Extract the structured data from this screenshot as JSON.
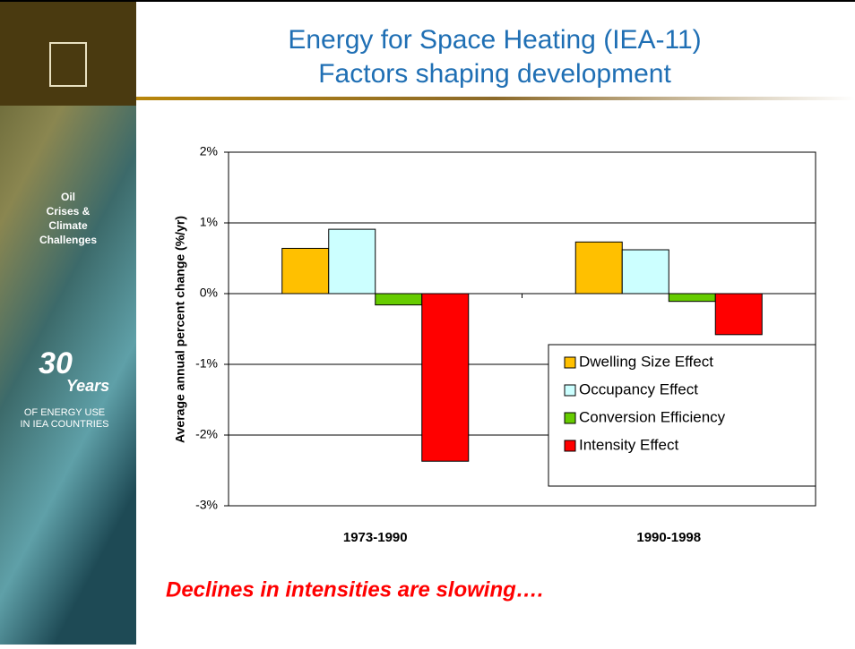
{
  "slide": {
    "title_lines": [
      "Energy for Space Heating (IEA-11)",
      "Factors shaping development"
    ],
    "sidebar": {
      "tag_lines": [
        "Oil",
        "Crises &",
        "Climate",
        "Challenges"
      ],
      "years_number": "30",
      "years_word": "Years",
      "sub_lines": [
        "OF ENERGY USE",
        "IN IEA COUNTRIES"
      ]
    },
    "caption": "Declines in intensities are slowing…."
  },
  "chart_data": {
    "type": "bar",
    "y_label": "Average annual percent change (%/yr)",
    "categories": [
      "1973-1990",
      "1990-1998"
    ],
    "series": [
      {
        "name": "Dwelling Size Effect",
        "color": "#ffc000",
        "values": [
          0.64,
          0.73
        ]
      },
      {
        "name": "Occupancy Effect",
        "color": "#ccffff",
        "values": [
          0.91,
          0.62
        ]
      },
      {
        "name": "Conversion Efficiency",
        "color": "#66cc00",
        "values": [
          -0.16,
          -0.11
        ]
      },
      {
        "name": "Intensity Effect",
        "color": "#ff0000",
        "values": [
          -2.37,
          -0.58
        ]
      }
    ],
    "ylim": [
      -3,
      2
    ],
    "yticks": [
      {
        "value": -3,
        "label": "-3%"
      },
      {
        "value": -2,
        "label": "-2%"
      },
      {
        "value": -1,
        "label": "-1%"
      },
      {
        "value": 0,
        "label": "0%"
      },
      {
        "value": 1,
        "label": "1%"
      },
      {
        "value": 2,
        "label": "2%"
      }
    ],
    "grid": true,
    "legend": "lower-right"
  }
}
